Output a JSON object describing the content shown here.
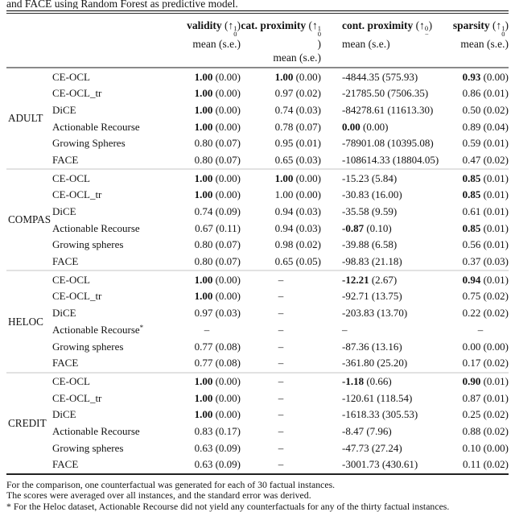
{
  "caption_top": "and FACE using Random Forest as predictive model.",
  "header": {
    "columns": [
      {
        "label": "validity",
        "arrow": {
          "open": "(",
          "glyph": "↑",
          "sup": "1",
          "sub": "0",
          "close": ")"
        },
        "sub_label": "mean (s.e.)",
        "align": "right"
      },
      {
        "label": "cat. proximity",
        "arrow": {
          "open": "(",
          "glyph": "↑",
          "sup": "1",
          "sub": "0",
          "close": ")"
        },
        "sub_label": "mean (s.e.)",
        "align": "right"
      },
      {
        "label": "cont. proximity",
        "arrow": {
          "open": "(",
          "glyph": "↑",
          "sup": "0",
          "sub": "−",
          "close": ")"
        },
        "sub_label": "mean (s.e.)",
        "align": "left"
      },
      {
        "label": "sparsity",
        "arrow": {
          "open": "(",
          "glyph": "↑",
          "sup": "1",
          "sub": "0",
          "close": ")"
        },
        "sub_label": "mean (s.e.)",
        "align": "right"
      }
    ]
  },
  "table": {
    "groups": [
      {
        "dataset": "ADULT",
        "rows": [
          {
            "method": "CE-OCL",
            "cells": [
              {
                "m": "1.00",
                "s": "(0.00)",
                "b": true
              },
              {
                "m": "1.00",
                "s": "(0.00)",
                "b": true
              },
              {
                "m": "-4844.35",
                "s": "(575.93)",
                "b": false
              },
              {
                "m": "0.93",
                "s": "(0.00)",
                "b": true
              }
            ]
          },
          {
            "method": "CE-OCL_tr",
            "cells": [
              {
                "m": "1.00",
                "s": "(0.00)",
                "b": true
              },
              {
                "m": "0.97",
                "s": "(0.02)",
                "b": false
              },
              {
                "m": "-21785.50",
                "s": "(7506.35)",
                "b": false
              },
              {
                "m": "0.86",
                "s": "(0.01)",
                "b": false
              }
            ]
          },
          {
            "method": "DiCE",
            "cells": [
              {
                "m": "1.00",
                "s": "(0.00)",
                "b": true
              },
              {
                "m": "0.74",
                "s": "(0.03)",
                "b": false
              },
              {
                "m": "-84278.61",
                "s": "(11613.30)",
                "b": false
              },
              {
                "m": "0.50",
                "s": "(0.02)",
                "b": false
              }
            ]
          },
          {
            "method": "Actionable Recourse",
            "cells": [
              {
                "m": "1.00",
                "s": "(0.00)",
                "b": true
              },
              {
                "m": "0.78",
                "s": "(0.07)",
                "b": false
              },
              {
                "m": "0.00",
                "s": "(0.00)",
                "b": true
              },
              {
                "m": "0.89",
                "s": "(0.04)",
                "b": false
              }
            ]
          },
          {
            "method": "Growing Spheres",
            "cells": [
              {
                "m": "0.80",
                "s": "(0.07)",
                "b": false
              },
              {
                "m": "0.95",
                "s": "(0.01)",
                "b": false
              },
              {
                "m": "-78901.08",
                "s": "(10395.08)",
                "b": false
              },
              {
                "m": "0.59",
                "s": "(0.01)",
                "b": false
              }
            ]
          },
          {
            "method": "FACE",
            "cells": [
              {
                "m": "0.80",
                "s": "(0.07)",
                "b": false
              },
              {
                "m": "0.65",
                "s": "(0.03)",
                "b": false
              },
              {
                "m": "-108614.33",
                "s": "(18804.05)",
                "b": false
              },
              {
                "m": "0.47",
                "s": "(0.02)",
                "b": false
              }
            ]
          }
        ]
      },
      {
        "dataset": "COMPAS",
        "rows": [
          {
            "method": "CE-OCL",
            "cells": [
              {
                "m": "1.00",
                "s": "(0.00)",
                "b": true
              },
              {
                "m": "1.00",
                "s": "(0.00)",
                "b": true
              },
              {
                "m": "-15.23",
                "s": "(5.84)",
                "b": false
              },
              {
                "m": "0.85",
                "s": "(0.01)",
                "b": true
              }
            ]
          },
          {
            "method": "CE-OCL_tr",
            "cells": [
              {
                "m": "1.00",
                "s": "(0.00)",
                "b": true
              },
              {
                "m": "1.00",
                "s": "(0.00)",
                "b": false
              },
              {
                "m": "-30.83",
                "s": "(16.00)",
                "b": false
              },
              {
                "m": "0.85",
                "s": "(0.01)",
                "b": true
              }
            ]
          },
          {
            "method": "DiCE",
            "cells": [
              {
                "m": "0.74",
                "s": "(0.09)",
                "b": false
              },
              {
                "m": "0.94",
                "s": "(0.03)",
                "b": false
              },
              {
                "m": "-35.58",
                "s": "(9.59)",
                "b": false
              },
              {
                "m": "0.61",
                "s": "(0.01)",
                "b": false
              }
            ]
          },
          {
            "method": "Actionable Recourse",
            "cells": [
              {
                "m": "0.67",
                "s": "(0.11)",
                "b": false
              },
              {
                "m": "0.94",
                "s": "(0.03)",
                "b": false
              },
              {
                "m": "-0.87",
                "s": "(0.10)",
                "b": true
              },
              {
                "m": "0.85",
                "s": "(0.01)",
                "b": true
              }
            ]
          },
          {
            "method": "Growing spheres",
            "cells": [
              {
                "m": "0.80",
                "s": "(0.07)",
                "b": false
              },
              {
                "m": "0.98",
                "s": "(0.02)",
                "b": false
              },
              {
                "m": "-39.88",
                "s": "(6.58)",
                "b": false
              },
              {
                "m": "0.56",
                "s": "(0.01)",
                "b": false
              }
            ]
          },
          {
            "method": "FACE",
            "cells": [
              {
                "m": "0.80",
                "s": "(0.07)",
                "b": false
              },
              {
                "m": "0.65",
                "s": "(0.05)",
                "b": false
              },
              {
                "m": "-98.83",
                "s": "(21.18)",
                "b": false
              },
              {
                "m": "0.37",
                "s": "(0.03)",
                "b": false
              }
            ]
          }
        ]
      },
      {
        "dataset": "HELOC",
        "rows": [
          {
            "method": "CE-OCL",
            "cells": [
              {
                "m": "1.00",
                "s": "(0.00)",
                "b": true
              },
              {
                "dash": "–"
              },
              {
                "m": "-12.21",
                "s": "(2.67)",
                "b": true
              },
              {
                "m": "0.94",
                "s": "(0.01)",
                "b": true
              }
            ]
          },
          {
            "method": "CE-OCL_tr",
            "cells": [
              {
                "m": "1.00",
                "s": "(0.00)",
                "b": true
              },
              {
                "dash": "–"
              },
              {
                "m": "-92.71",
                "s": "(13.75)",
                "b": false
              },
              {
                "m": "0.75",
                "s": "(0.02)",
                "b": false
              }
            ]
          },
          {
            "method": "DiCE",
            "cells": [
              {
                "m": "0.97",
                "s": "(0.03)",
                "b": false
              },
              {
                "dash": "–"
              },
              {
                "m": "-203.83",
                "s": "(13.70)",
                "b": false
              },
              {
                "m": "0.22",
                "s": "(0.02)",
                "b": false
              }
            ]
          },
          {
            "method": "Actionable Recourse",
            "method_sup": "*",
            "cells": [
              {
                "dash": "–"
              },
              {
                "dash": "–"
              },
              {
                "dash": "–"
              },
              {
                "dash": "–"
              }
            ]
          },
          {
            "method": "Growing spheres",
            "cells": [
              {
                "m": "0.77",
                "s": "(0.08)",
                "b": false
              },
              {
                "dash": "–"
              },
              {
                "m": "-87.36",
                "s": "(13.16)",
                "b": false
              },
              {
                "m": "0.00",
                "s": "(0.00)",
                "b": false
              }
            ]
          },
          {
            "method": "FACE",
            "cells": [
              {
                "m": "0.77",
                "s": "(0.08)",
                "b": false
              },
              {
                "dash": "–"
              },
              {
                "m": "-361.80",
                "s": "(25.20)",
                "b": false
              },
              {
                "m": "0.17",
                "s": "(0.02)",
                "b": false
              }
            ]
          }
        ]
      },
      {
        "dataset": "CREDIT",
        "rows": [
          {
            "method": "CE-OCL",
            "cells": [
              {
                "m": "1.00",
                "s": "(0.00)",
                "b": true
              },
              {
                "dash": "–"
              },
              {
                "m": "-1.18",
                "s": "(0.66)",
                "b": true
              },
              {
                "m": "0.90",
                "s": "(0.01)",
                "b": true
              }
            ]
          },
          {
            "method": "CE-OCL_tr",
            "cells": [
              {
                "m": "1.00",
                "s": "(0.00)",
                "b": true
              },
              {
                "dash": "–"
              },
              {
                "m": "-120.61",
                "s": "(118.54)",
                "b": false
              },
              {
                "m": "0.87",
                "s": "(0.01)",
                "b": false
              }
            ]
          },
          {
            "method": "DiCE",
            "cells": [
              {
                "m": "1.00",
                "s": "(0.00)",
                "b": true
              },
              {
                "dash": "–"
              },
              {
                "m": "-1618.33",
                "s": "(305.53)",
                "b": false
              },
              {
                "m": "0.25",
                "s": "(0.02)",
                "b": false
              }
            ]
          },
          {
            "method": "Actionable Recourse",
            "cells": [
              {
                "m": "0.83",
                "s": "(0.17)",
                "b": false
              },
              {
                "dash": "–"
              },
              {
                "m": "-8.47",
                "s": "(7.96)",
                "b": false
              },
              {
                "m": "0.88",
                "s": "(0.02)",
                "b": false
              }
            ]
          },
          {
            "method": "Growing spheres",
            "cells": [
              {
                "m": "0.63",
                "s": "(0.09)",
                "b": false
              },
              {
                "dash": "–"
              },
              {
                "m": "-47.73",
                "s": "(27.24)",
                "b": false
              },
              {
                "m": "0.10",
                "s": "(0.00)",
                "b": false
              }
            ]
          },
          {
            "method": "FACE",
            "cells": [
              {
                "m": "0.63",
                "s": "(0.09)",
                "b": false
              },
              {
                "dash": "–"
              },
              {
                "m": "-3001.73",
                "s": "(430.61)",
                "b": false
              },
              {
                "m": "0.11",
                "s": "(0.02)",
                "b": false
              }
            ]
          }
        ]
      }
    ]
  },
  "footnotes": [
    "For the comparison, one counterfactual was generated for each of 30 factual instances.",
    "The scores were averaged over all instances, and the standard error was derived.",
    "* For the Heloc dataset, Actionable Recourse did not yield any counterfactuals for any of the thirty factual instances."
  ]
}
